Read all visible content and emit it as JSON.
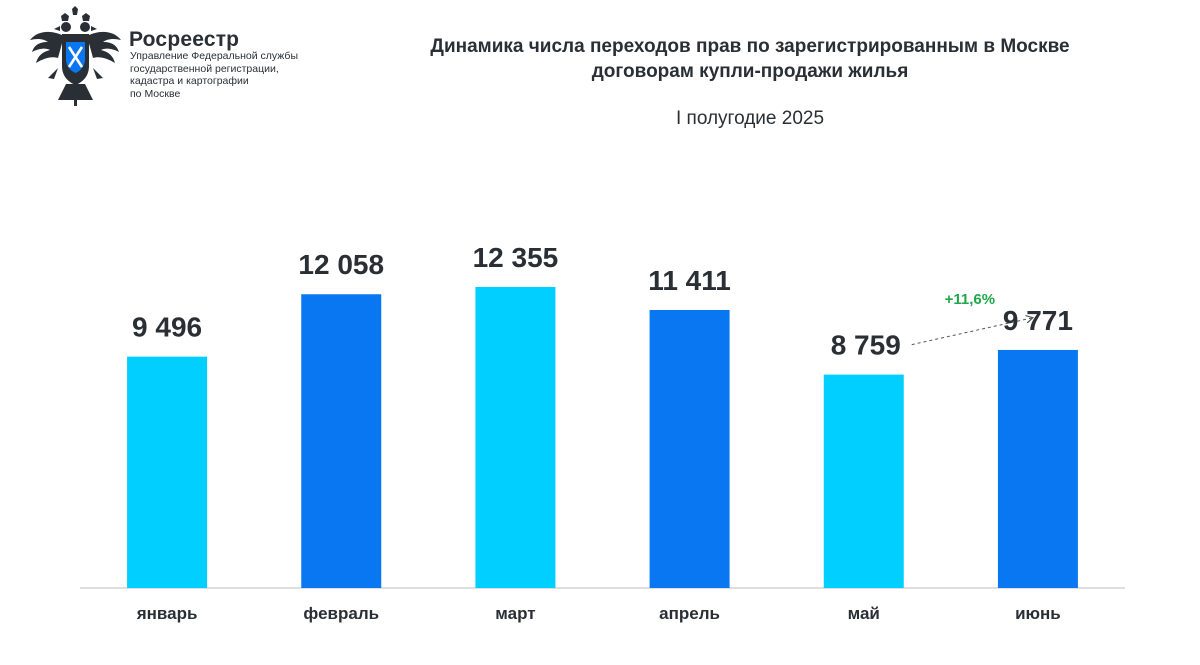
{
  "header": {
    "brand": "Росреестр",
    "brand_sub": [
      "Управление Федеральной службы",
      "государственной регистрации,",
      "кадастра и картографии",
      "по Москве"
    ],
    "title_lines": [
      "Динамика числа переходов прав по зарегистрированным в Москве",
      "договорам купли-продажи жилья"
    ],
    "subtitle": "I полугодие 2025"
  },
  "colors": {
    "light": "#00cfff",
    "dark": "#0a77f2",
    "text": "#2a2f36",
    "growth": "#1ea84a",
    "axis": "#bdbdbd",
    "emblem": "#2a2f36",
    "emblem_shield": "#0a77f2"
  },
  "icons": {
    "logo": "rosreestr-eagle-emblem-icon"
  },
  "chart_data": {
    "type": "bar",
    "title": "Динамика числа переходов прав по зарегистрированным в Москве договорам купли-продажи жилья",
    "subtitle": "I полугодие 2025",
    "categories": [
      "январь",
      "февраль",
      "март",
      "апрель",
      "май",
      "июнь"
    ],
    "values": [
      9496,
      12058,
      12355,
      11411,
      8759,
      9771
    ],
    "value_labels": [
      "9 496",
      "12 058",
      "12 355",
      "11 411",
      "8 759",
      "9 771"
    ],
    "bar_colors": [
      "#00cfff",
      "#0a77f2",
      "#00cfff",
      "#0a77f2",
      "#00cfff",
      "#0a77f2"
    ],
    "ylim": [
      0,
      13000
    ],
    "grid": false,
    "xlabel": "",
    "ylabel": "",
    "annotations": [
      {
        "text": "+11,6%",
        "from": "май",
        "to": "июнь",
        "style": "dashed-arrow"
      }
    ]
  }
}
